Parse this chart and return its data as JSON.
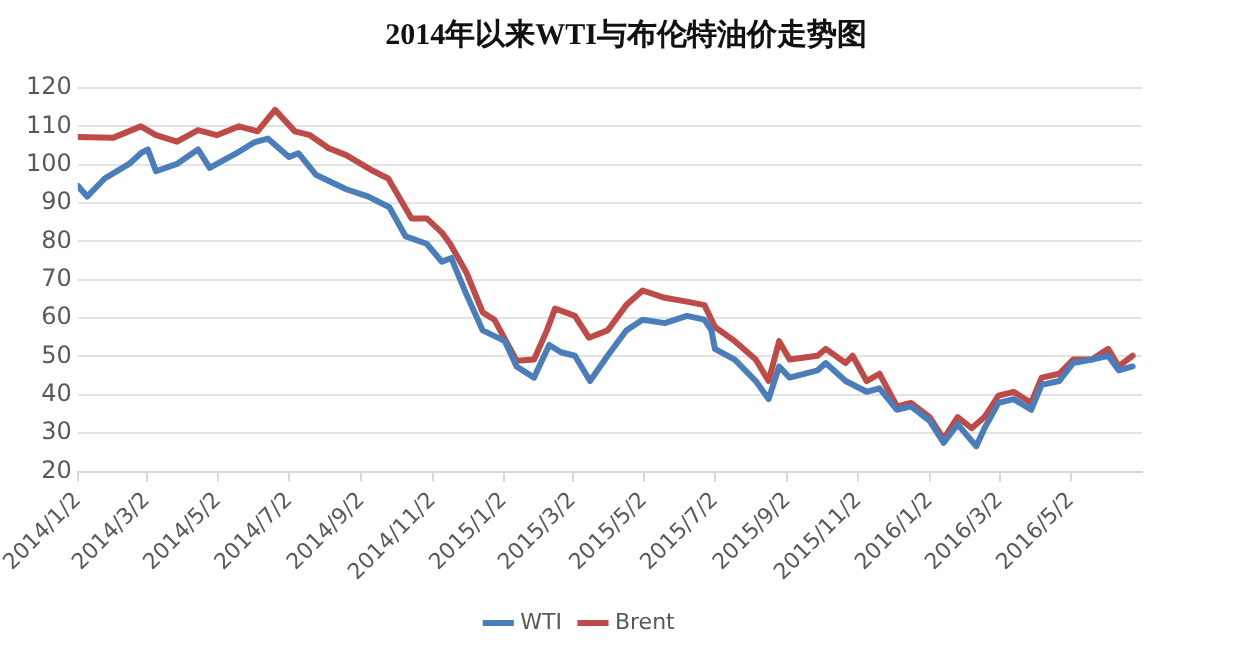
{
  "chart_data": {
    "type": "line",
    "title": "2014年以来WTI与布伦特油价走势图",
    "xlim": [
      "2014-01-02",
      "2016-07-02"
    ],
    "xticks": [
      {
        "value": "2014-01-02",
        "label": "2014/1/2"
      },
      {
        "value": "2014-03-02",
        "label": "2014/3/2"
      },
      {
        "value": "2014-05-02",
        "label": "2014/5/2"
      },
      {
        "value": "2014-07-02",
        "label": "2014/7/2"
      },
      {
        "value": "2014-09-02",
        "label": "2014/9/2"
      },
      {
        "value": "2014-11-02",
        "label": "2014/11/2"
      },
      {
        "value": "2015-01-02",
        "label": "2015/1/2"
      },
      {
        "value": "2015-03-02",
        "label": "2015/3/2"
      },
      {
        "value": "2015-05-02",
        "label": "2015/5/2"
      },
      {
        "value": "2015-07-02",
        "label": "2015/7/2"
      },
      {
        "value": "2015-09-02",
        "label": "2015/9/2"
      },
      {
        "value": "2015-11-02",
        "label": "2015/11/2"
      },
      {
        "value": "2016-01-02",
        "label": "2016/1/2"
      },
      {
        "value": "2016-03-02",
        "label": "2016/3/2"
      },
      {
        "value": "2016-05-02",
        "label": "2016/5/2"
      }
    ],
    "ylim": [
      20,
      120
    ],
    "yticks": [
      20,
      30,
      40,
      50,
      60,
      70,
      80,
      90,
      100,
      110,
      120
    ],
    "grid": "y",
    "legend": "bottom",
    "marker": "none",
    "line_style": "solid",
    "series": [
      {
        "name": "WTI",
        "color": "#4a7ebb",
        "x": [
          "2014-01-02",
          "2014-01-10",
          "2014-01-25",
          "2014-02-15",
          "2014-02-25",
          "2014-03-03",
          "2014-03-10",
          "2014-03-28",
          "2014-04-15",
          "2014-04-25",
          "2014-05-18",
          "2014-06-02",
          "2014-06-14",
          "2014-07-02",
          "2014-07-10",
          "2014-07-25",
          "2014-08-20",
          "2014-09-08",
          "2014-09-26",
          "2014-10-10",
          "2014-10-28",
          "2014-11-10",
          "2014-11-18",
          "2014-12-01",
          "2014-12-15",
          "2015-01-03",
          "2015-01-13",
          "2015-01-28",
          "2015-02-10",
          "2015-02-20",
          "2015-03-04",
          "2015-03-17",
          "2015-04-01",
          "2015-04-17",
          "2015-05-01",
          "2015-05-20",
          "2015-06-08",
          "2015-06-23",
          "2015-06-29",
          "2015-07-02",
          "2015-07-19",
          "2015-08-06",
          "2015-08-17",
          "2015-08-26",
          "2015-09-04",
          "2015-09-28",
          "2015-10-05",
          "2015-10-22",
          "2015-11-09",
          "2015-11-20",
          "2015-12-05",
          "2015-12-17",
          "2016-01-02",
          "2016-01-14",
          "2016-01-26",
          "2016-02-11",
          "2016-02-18",
          "2016-03-01",
          "2016-03-14",
          "2016-03-29",
          "2016-04-07",
          "2016-04-22",
          "2016-05-04",
          "2016-05-20",
          "2016-06-03",
          "2016-06-12",
          "2016-06-24"
        ],
        "values": [
          94.5,
          91.7,
          96.4,
          100.2,
          103,
          104,
          98.3,
          100.2,
          104,
          99.2,
          103,
          105.8,
          106.8,
          102,
          103,
          97.4,
          93.6,
          91.7,
          88.9,
          81.3,
          79.4,
          74.7,
          75.7,
          66.2,
          56.8,
          54,
          47.4,
          44.5,
          53,
          51.1,
          50.2,
          43.6,
          50.2,
          56.8,
          59.6,
          58.7,
          60.6,
          59.6,
          56.8,
          52,
          49.2,
          43.6,
          38.9,
          47.4,
          44.5,
          46.4,
          48.3,
          43.6,
          40.8,
          41.7,
          36.1,
          37,
          33.2,
          27.5,
          32.3,
          26.6,
          31.3,
          37.9,
          38.9,
          36.1,
          42.6,
          43.6,
          48.3,
          49.2,
          50.2,
          46.4,
          47.4
        ]
      },
      {
        "name": "Brent",
        "color": "#be4b48",
        "x": [
          "2014-01-02",
          "2014-02-01",
          "2014-02-25",
          "2014-03-10",
          "2014-03-28",
          "2014-04-15",
          "2014-05-01",
          "2014-05-20",
          "2014-06-05",
          "2014-06-20",
          "2014-07-07",
          "2014-07-20",
          "2014-08-05",
          "2014-08-20",
          "2014-09-10",
          "2014-09-25",
          "2014-10-15",
          "2014-10-28",
          "2014-11-10",
          "2014-11-17",
          "2014-12-01",
          "2014-12-15",
          "2014-12-25",
          "2015-01-13",
          "2015-01-28",
          "2015-02-08",
          "2015-02-15",
          "2015-03-04",
          "2015-03-16",
          "2015-04-01",
          "2015-04-17",
          "2015-05-01",
          "2015-05-20",
          "2015-06-08",
          "2015-06-23",
          "2015-07-02",
          "2015-07-19",
          "2015-08-06",
          "2015-08-17",
          "2015-08-26",
          "2015-09-04",
          "2015-09-28",
          "2015-10-05",
          "2015-10-22",
          "2015-10-28",
          "2015-11-09",
          "2015-11-20",
          "2015-12-05",
          "2015-12-17",
          "2016-01-02",
          "2016-01-14",
          "2016-01-26",
          "2016-02-07",
          "2016-02-18",
          "2016-03-01",
          "2016-03-14",
          "2016-03-29",
          "2016-04-07",
          "2016-04-22",
          "2016-05-04",
          "2016-05-20",
          "2016-06-03",
          "2016-06-12",
          "2016-06-24"
        ],
        "values": [
          107.2,
          107,
          110,
          107.7,
          106,
          109,
          107.7,
          110,
          108.7,
          114.3,
          108.7,
          107.7,
          104.3,
          102.5,
          98.7,
          96.4,
          86,
          86,
          82.3,
          79.4,
          71.9,
          61.5,
          59.6,
          48.9,
          49.2,
          56.8,
          62.5,
          60.6,
          54.9,
          56.8,
          63.4,
          67.2,
          65.3,
          64.3,
          63.4,
          57.7,
          54,
          49.2,
          43.6,
          54,
          49.2,
          50.2,
          52,
          48.3,
          50.2,
          43.6,
          45.5,
          37,
          37.9,
          34.2,
          28.5,
          34.2,
          31.3,
          34.2,
          39.8,
          40.8,
          37.9,
          44.5,
          45.5,
          49.2,
          49.2,
          52,
          47.4,
          50.2
        ]
      }
    ]
  }
}
